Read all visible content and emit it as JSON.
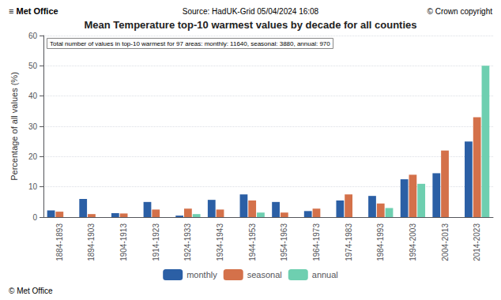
{
  "chart_data": {
    "type": "bar",
    "title": "Mean Temperature top-10 warmest values by decade for all counties",
    "annotations": [
      "≡ Met Office",
      "Source: HadUK-Grid 05/04/2024 16:08",
      "© Crown copyright",
      "Total number of values in top-10 warmest for 97 areas: monthly: 11640, seasonal: 3880, annual: 970",
      "© Met Office"
    ],
    "ylabel": "Percentage of all values (%)",
    "categories": [
      "1884-1893",
      "1894-1903",
      "1904-1913",
      "1914-1923",
      "1924-1933",
      "1934-1943",
      "1944-1953",
      "1954-1963",
      "1964-1973",
      "1974-1983",
      "1984-1993",
      "1994-2003",
      "2004-2013",
      "2014-2023"
    ],
    "series": [
      {
        "name": "monthly",
        "color": "#2b5fa5",
        "values": [
          2.2,
          6.0,
          1.3,
          5.0,
          0.5,
          5.7,
          7.5,
          5.0,
          2.0,
          5.5,
          7.0,
          12.5,
          14.5,
          25.0
        ]
      },
      {
        "name": "seasonal",
        "color": "#d4714a",
        "values": [
          1.8,
          1.0,
          1.2,
          2.5,
          2.8,
          2.5,
          5.5,
          1.5,
          2.8,
          7.5,
          4.5,
          14.0,
          22.0,
          33.0
        ]
      },
      {
        "name": "annual",
        "color": "#6ecfb0",
        "values": [
          0.0,
          0.0,
          0.0,
          0.0,
          1.0,
          0.0,
          1.5,
          0.0,
          0.0,
          0.0,
          3.0,
          11.0,
          0.0,
          50.0
        ]
      }
    ],
    "ylim": [
      0,
      60
    ],
    "yticks": [
      0,
      10,
      20,
      30,
      40,
      50,
      60
    ],
    "grid": true,
    "legend": "bottom"
  }
}
